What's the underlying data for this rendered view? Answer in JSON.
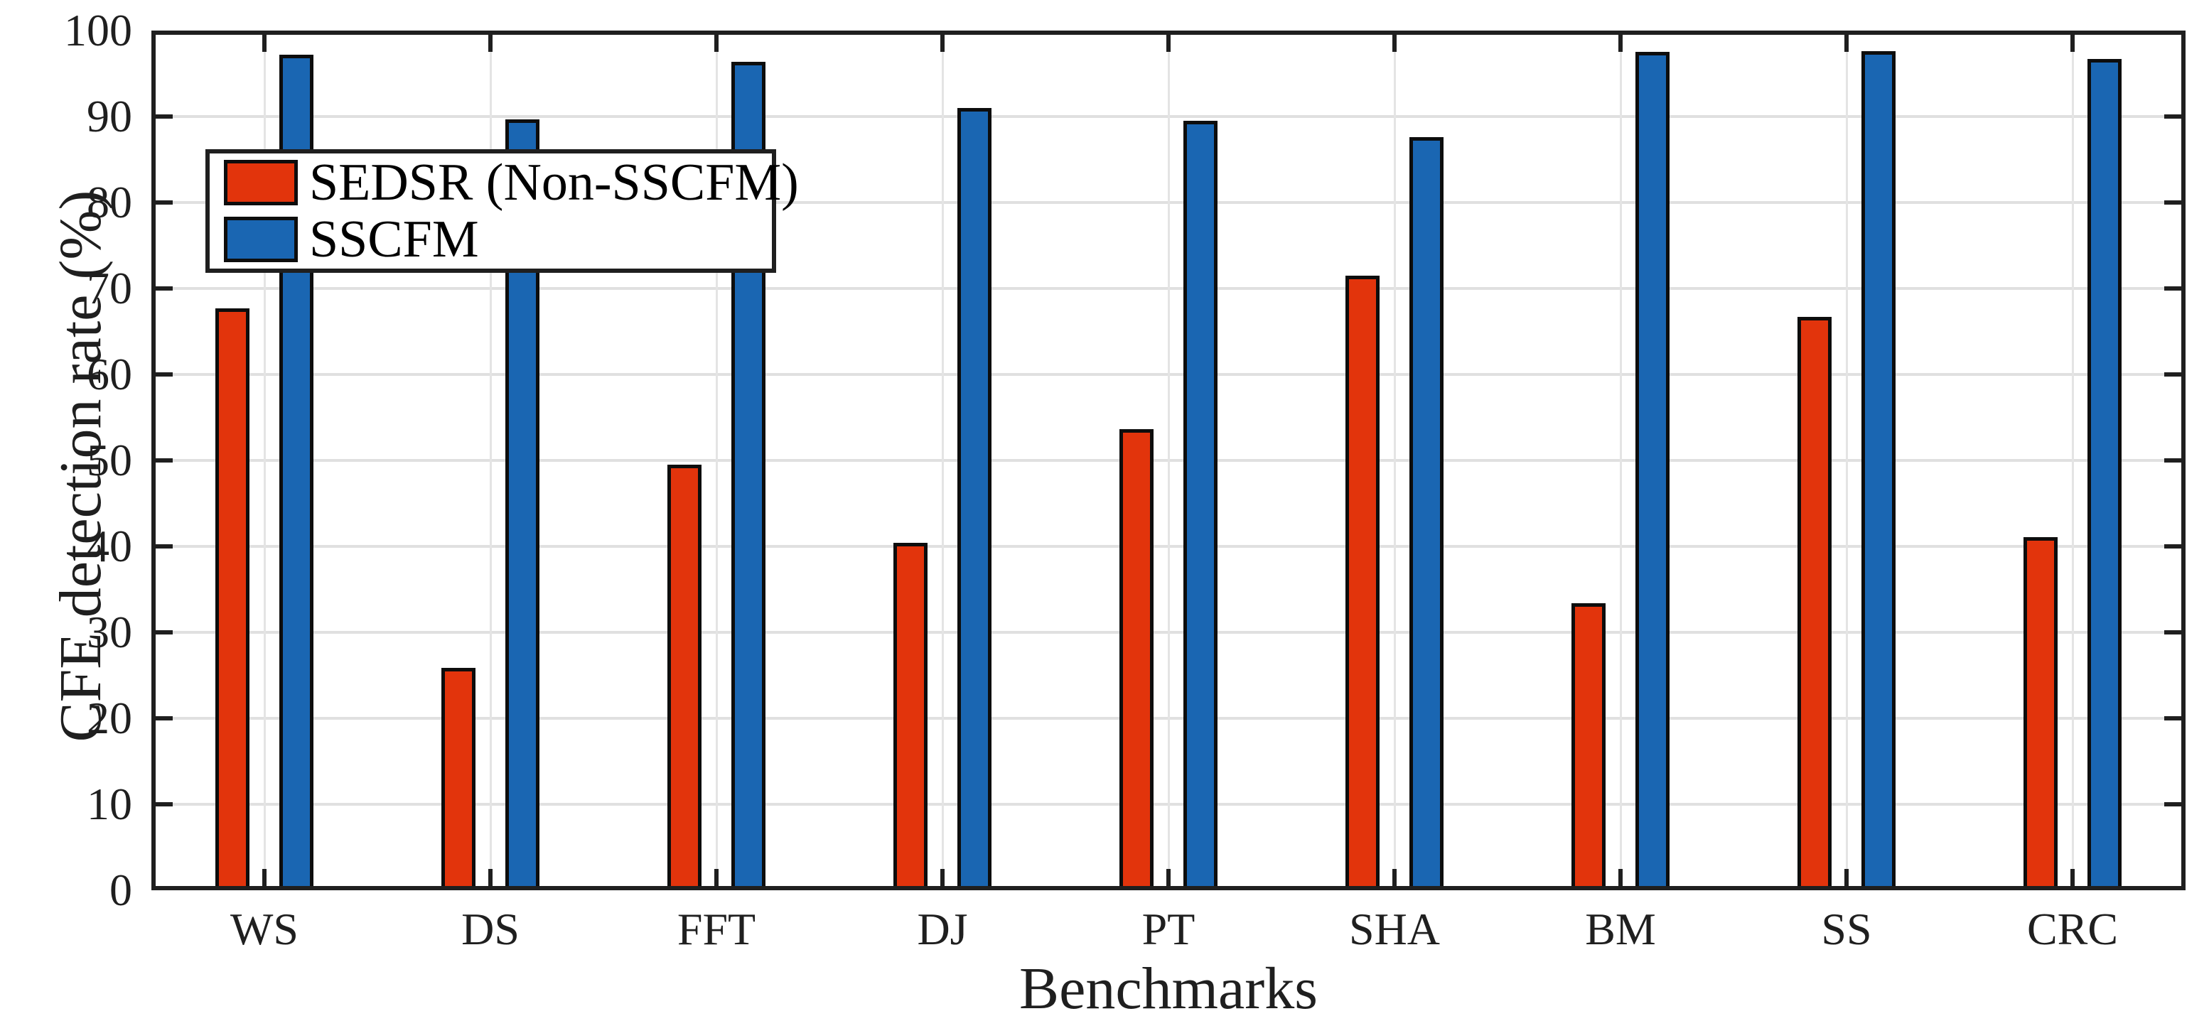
{
  "chart_data": {
    "type": "bar",
    "title": "",
    "xlabel": "Benchmarks",
    "ylabel": "CFE detection rate (%)",
    "categories": [
      "WS",
      "DS",
      "FFT",
      "DJ",
      "PT",
      "SHA",
      "BM",
      "SS",
      "CRC"
    ],
    "series": [
      {
        "name": "SEDSR (Non-SSCFM)",
        "color": "#e2340c",
        "values": [
          67.7,
          25.9,
          49.5,
          40.4,
          53.6,
          71.5,
          33.4,
          66.7,
          41.1
        ]
      },
      {
        "name": "SSCFM",
        "color": "#1a66b2",
        "values": [
          97.2,
          89.7,
          96.4,
          91.0,
          89.5,
          87.6,
          97.5,
          97.6,
          96.7
        ]
      }
    ],
    "ylim": [
      0,
      100
    ],
    "yticks": [
      0,
      10,
      20,
      30,
      40,
      50,
      60,
      70,
      80,
      90,
      100
    ],
    "grid": "on",
    "legend_position": "upper-left-inside",
    "bar_edge_color": "#0d0d0d",
    "axis_color": "#1f1f1f",
    "grid_color": "#e0e0e0"
  }
}
